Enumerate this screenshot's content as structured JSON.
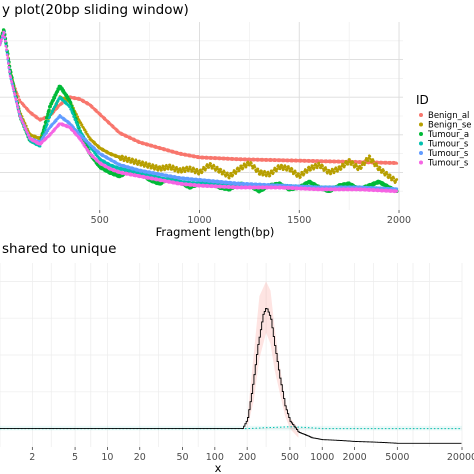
{
  "chart_data": [
    {
      "type": "scatter",
      "title": "y plot(20bp sliding window)",
      "xlabel": "Fragment length(bp)",
      "ylabel": "",
      "xlim": [
        0,
        2020
      ],
      "ylim": [
        0,
        1
      ],
      "x_ticks": [
        500,
        1000,
        1500,
        2000
      ],
      "x_tick_labels": [
        "500",
        "1000",
        "1500",
        "2000"
      ],
      "grid": true,
      "legend_position": "right",
      "legend_title": "ID",
      "series": [
        {
          "name": "Benign_al",
          "color": "#F8766D",
          "points": [
            [
              0,
              0.9
            ],
            [
              20,
              0.96
            ],
            [
              50,
              0.72
            ],
            [
              100,
              0.58
            ],
            [
              150,
              0.52
            ],
            [
              200,
              0.48
            ],
            [
              250,
              0.5
            ],
            [
              300,
              0.56
            ],
            [
              350,
              0.6
            ],
            [
              400,
              0.59
            ],
            [
              450,
              0.56
            ],
            [
              500,
              0.51
            ],
            [
              550,
              0.46
            ],
            [
              600,
              0.41
            ],
            [
              700,
              0.36
            ],
            [
              800,
              0.33
            ],
            [
              900,
              0.3
            ],
            [
              1000,
              0.28
            ],
            [
              1200,
              0.27
            ],
            [
              1400,
              0.265
            ],
            [
              1600,
              0.26
            ],
            [
              1800,
              0.255
            ],
            [
              1990,
              0.25
            ]
          ]
        },
        {
          "name": "Benign_se",
          "color": "#B79F00",
          "points": [
            [
              0,
              0.9
            ],
            [
              20,
              0.96
            ],
            [
              50,
              0.75
            ],
            [
              100,
              0.52
            ],
            [
              150,
              0.4
            ],
            [
              200,
              0.38
            ],
            [
              250,
              0.5
            ],
            [
              300,
              0.6
            ],
            [
              350,
              0.58
            ],
            [
              400,
              0.47
            ],
            [
              450,
              0.38
            ],
            [
              500,
              0.33
            ],
            [
              550,
              0.3
            ],
            [
              600,
              0.28
            ],
            [
              700,
              0.25
            ],
            [
              800,
              0.22
            ],
            [
              850,
              0.23
            ],
            [
              900,
              0.21
            ],
            [
              950,
              0.22
            ],
            [
              1000,
              0.2
            ],
            [
              1050,
              0.24
            ],
            [
              1100,
              0.21
            ],
            [
              1150,
              0.18
            ],
            [
              1200,
              0.22
            ],
            [
              1250,
              0.25
            ],
            [
              1300,
              0.2
            ],
            [
              1350,
              0.19
            ],
            [
              1400,
              0.23
            ],
            [
              1450,
              0.22
            ],
            [
              1500,
              0.18
            ],
            [
              1550,
              0.22
            ],
            [
              1600,
              0.24
            ],
            [
              1650,
              0.2
            ],
            [
              1700,
              0.22
            ],
            [
              1750,
              0.26
            ],
            [
              1800,
              0.22
            ],
            [
              1850,
              0.28
            ],
            [
              1900,
              0.22
            ],
            [
              1950,
              0.18
            ],
            [
              1990,
              0.15
            ]
          ]
        },
        {
          "name": "Tumour_a",
          "color": "#00BA38",
          "points": [
            [
              0,
              0.9
            ],
            [
              20,
              0.96
            ],
            [
              50,
              0.75
            ],
            [
              100,
              0.5
            ],
            [
              150,
              0.37
            ],
            [
              200,
              0.35
            ],
            [
              250,
              0.55
            ],
            [
              300,
              0.66
            ],
            [
              350,
              0.58
            ],
            [
              400,
              0.42
            ],
            [
              450,
              0.3
            ],
            [
              500,
              0.23
            ],
            [
              550,
              0.2
            ],
            [
              600,
              0.18
            ],
            [
              650,
              0.21
            ],
            [
              700,
              0.2
            ],
            [
              750,
              0.16
            ],
            [
              800,
              0.14
            ],
            [
              850,
              0.17
            ],
            [
              900,
              0.15
            ],
            [
              950,
              0.12
            ],
            [
              1000,
              0.14
            ],
            [
              1050,
              0.15
            ],
            [
              1100,
              0.12
            ],
            [
              1150,
              0.11
            ],
            [
              1200,
              0.14
            ],
            [
              1250,
              0.13
            ],
            [
              1300,
              0.1
            ],
            [
              1350,
              0.13
            ],
            [
              1400,
              0.14
            ],
            [
              1450,
              0.11
            ],
            [
              1500,
              0.12
            ],
            [
              1550,
              0.15
            ],
            [
              1600,
              0.12
            ],
            [
              1650,
              0.1
            ],
            [
              1700,
              0.13
            ],
            [
              1750,
              0.14
            ],
            [
              1800,
              0.11
            ],
            [
              1850,
              0.13
            ],
            [
              1900,
              0.15
            ],
            [
              1950,
              0.12
            ],
            [
              1990,
              0.1
            ]
          ]
        },
        {
          "name": "Tumour_s",
          "color": "#00C0AF",
          "points": [
            [
              0,
              0.88
            ],
            [
              20,
              0.95
            ],
            [
              50,
              0.72
            ],
            [
              100,
              0.5
            ],
            [
              150,
              0.37
            ],
            [
              200,
              0.34
            ],
            [
              250,
              0.5
            ],
            [
              300,
              0.6
            ],
            [
              350,
              0.55
            ],
            [
              400,
              0.42
            ],
            [
              450,
              0.34
            ],
            [
              500,
              0.27
            ],
            [
              550,
              0.24
            ],
            [
              600,
              0.22
            ],
            [
              700,
              0.2
            ],
            [
              800,
              0.17
            ],
            [
              900,
              0.15
            ],
            [
              1000,
              0.14
            ],
            [
              1200,
              0.13
            ],
            [
              1400,
              0.13
            ],
            [
              1600,
              0.12
            ],
            [
              1800,
              0.12
            ],
            [
              1990,
              0.11
            ]
          ]
        },
        {
          "name": "Tumour_s",
          "color": "#619CFF",
          "points": [
            [
              0,
              0.88
            ],
            [
              20,
              0.95
            ],
            [
              50,
              0.72
            ],
            [
              100,
              0.5
            ],
            [
              150,
              0.38
            ],
            [
              200,
              0.36
            ],
            [
              250,
              0.44
            ],
            [
              300,
              0.5
            ],
            [
              350,
              0.46
            ],
            [
              400,
              0.4
            ],
            [
              450,
              0.35
            ],
            [
              500,
              0.3
            ],
            [
              550,
              0.27
            ],
            [
              600,
              0.24
            ],
            [
              700,
              0.21
            ],
            [
              800,
              0.19
            ],
            [
              900,
              0.17
            ],
            [
              1000,
              0.16
            ],
            [
              1200,
              0.14
            ],
            [
              1400,
              0.13
            ],
            [
              1600,
              0.12
            ],
            [
              1800,
              0.12
            ],
            [
              1990,
              0.11
            ]
          ]
        },
        {
          "name": "Tumour_s",
          "color": "#F564E3",
          "points": [
            [
              0,
              0.88
            ],
            [
              20,
              0.95
            ],
            [
              50,
              0.72
            ],
            [
              100,
              0.5
            ],
            [
              150,
              0.38
            ],
            [
              200,
              0.35
            ],
            [
              250,
              0.4
            ],
            [
              300,
              0.46
            ],
            [
              350,
              0.44
            ],
            [
              400,
              0.38
            ],
            [
              450,
              0.3
            ],
            [
              500,
              0.25
            ],
            [
              550,
              0.22
            ],
            [
              600,
              0.2
            ],
            [
              700,
              0.18
            ],
            [
              800,
              0.16
            ],
            [
              900,
              0.14
            ],
            [
              1000,
              0.13
            ],
            [
              1200,
              0.12
            ],
            [
              1400,
              0.12
            ],
            [
              1600,
              0.11
            ],
            [
              1800,
              0.11
            ],
            [
              1990,
              0.1
            ]
          ]
        }
      ]
    },
    {
      "type": "line",
      "title": "shared to unique",
      "xlabel": "x",
      "ylabel": "",
      "x_scale": "log",
      "xlim": [
        1,
        20000
      ],
      "ylim": [
        0,
        1
      ],
      "x_ticks": [
        2,
        5,
        10,
        20,
        50,
        100,
        200,
        500,
        1000,
        2000,
        5000,
        20000
      ],
      "x_tick_labels": [
        "2",
        "5",
        "10",
        "20",
        "50",
        "100",
        "200",
        "500",
        "1000",
        "2000",
        "5000",
        "20000"
      ],
      "grid": true,
      "series": [
        {
          "name": "",
          "color": "#000000",
          "style": "step",
          "points": [
            [
              1,
              0.1
            ],
            [
              100,
              0.1
            ],
            [
              180,
              0.1
            ],
            [
              200,
              0.15
            ],
            [
              220,
              0.3
            ],
            [
              250,
              0.55
            ],
            [
              280,
              0.72
            ],
            [
              300,
              0.76
            ],
            [
              330,
              0.7
            ],
            [
              360,
              0.55
            ],
            [
              400,
              0.38
            ],
            [
              450,
              0.22
            ],
            [
              500,
              0.14
            ],
            [
              600,
              0.08
            ],
            [
              800,
              0.05
            ],
            [
              1000,
              0.04
            ],
            [
              2000,
              0.03
            ],
            [
              5000,
              0.02
            ],
            [
              20000,
              0.02
            ]
          ]
        },
        {
          "name": "",
          "color": "#F8766D",
          "style": "ribbon",
          "upper": [
            [
              200,
              0.15
            ],
            [
              230,
              0.5
            ],
            [
              260,
              0.82
            ],
            [
              300,
              0.9
            ],
            [
              330,
              0.85
            ],
            [
              360,
              0.65
            ],
            [
              400,
              0.45
            ],
            [
              450,
              0.26
            ],
            [
              500,
              0.16
            ],
            [
              600,
              0.1
            ]
          ],
          "lower": [
            [
              200,
              0.1
            ],
            [
              230,
              0.25
            ],
            [
              260,
              0.48
            ],
            [
              300,
              0.62
            ],
            [
              330,
              0.56
            ],
            [
              360,
              0.42
            ],
            [
              400,
              0.3
            ],
            [
              450,
              0.17
            ],
            [
              500,
              0.1
            ],
            [
              600,
              0.05
            ]
          ]
        },
        {
          "name": "",
          "color": "#00C0AF",
          "style": "dotted",
          "points": [
            [
              1,
              0.1
            ],
            [
              100,
              0.1
            ],
            [
              200,
              0.1
            ],
            [
              300,
              0.105
            ],
            [
              500,
              0.11
            ],
            [
              1000,
              0.1
            ],
            [
              20000,
              0.1
            ]
          ]
        }
      ]
    }
  ]
}
